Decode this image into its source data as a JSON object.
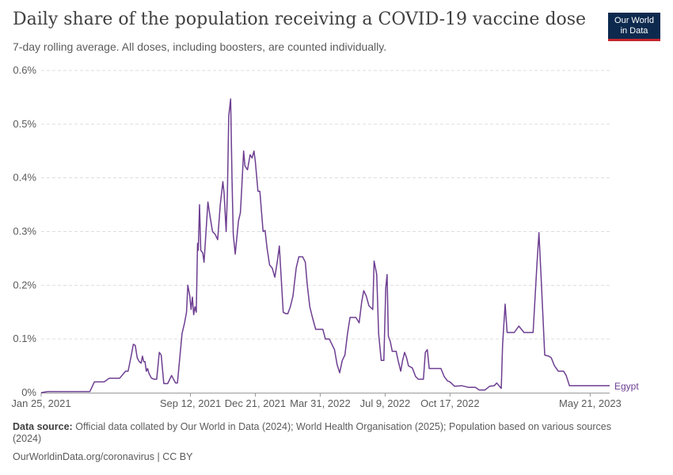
{
  "header": {
    "title": "Daily share of the population receiving a COVID-19 vaccine dose",
    "subtitle": "7-day rolling average. All doses, including boosters, are counted individually."
  },
  "logo": {
    "line1": "Our World",
    "line2": "in Data"
  },
  "footer": {
    "source_label": "Data source:",
    "source_text": "Official data collated by Our World in Data (2024); World Health Organisation (2025); Population based on various sources (2024)",
    "credit": "OurWorldinData.org/coronavirus | CC BY"
  },
  "colors": {
    "series": "#6d3e91",
    "grid": "#dddddd",
    "axis": "#999999"
  },
  "chart_data": {
    "type": "line",
    "ylabel": "",
    "xlabel": "",
    "ylim": [
      0,
      0.6
    ],
    "xlim": [
      "2021-01-25",
      "2023-06-20"
    ],
    "y_ticks": [
      "0%",
      "0.1%",
      "0.2%",
      "0.3%",
      "0.4%",
      "0.5%",
      "0.6%"
    ],
    "x_ticks": [
      {
        "date": "2021-01-25",
        "label": "Jan 25, 2021"
      },
      {
        "date": "2021-09-12",
        "label": "Sep 12, 2021"
      },
      {
        "date": "2021-12-21",
        "label": "Dec 21, 2021"
      },
      {
        "date": "2022-03-31",
        "label": "Mar 31, 2022"
      },
      {
        "date": "2022-07-09",
        "label": "Jul 9, 2022"
      },
      {
        "date": "2022-10-17",
        "label": "Oct 17, 2022"
      },
      {
        "date": "2023-05-21",
        "label": "May 21, 2023"
      }
    ],
    "grid": true,
    "series": [
      {
        "name": "Egypt",
        "points": [
          [
            "2021-01-25",
            0.0
          ],
          [
            "2021-02-04",
            0.002
          ],
          [
            "2021-04-10",
            0.002
          ],
          [
            "2021-04-17",
            0.02
          ],
          [
            "2021-05-02",
            0.02
          ],
          [
            "2021-05-10",
            0.027
          ],
          [
            "2021-05-26",
            0.027
          ],
          [
            "2021-06-04",
            0.04
          ],
          [
            "2021-06-08",
            0.04
          ],
          [
            "2021-06-13",
            0.07
          ],
          [
            "2021-06-16",
            0.09
          ],
          [
            "2021-06-19",
            0.088
          ],
          [
            "2021-06-22",
            0.065
          ],
          [
            "2021-06-25",
            0.058
          ],
          [
            "2021-06-28",
            0.055
          ],
          [
            "2021-06-30",
            0.068
          ],
          [
            "2021-07-02",
            0.058
          ],
          [
            "2021-07-04",
            0.058
          ],
          [
            "2021-07-06",
            0.04
          ],
          [
            "2021-07-08",
            0.045
          ],
          [
            "2021-07-10",
            0.036
          ],
          [
            "2021-07-14",
            0.027
          ],
          [
            "2021-07-18",
            0.025
          ],
          [
            "2021-07-22",
            0.025
          ],
          [
            "2021-07-26",
            0.075
          ],
          [
            "2021-07-29",
            0.07
          ],
          [
            "2021-08-02",
            0.017
          ],
          [
            "2021-08-08",
            0.017
          ],
          [
            "2021-08-14",
            0.032
          ],
          [
            "2021-08-20",
            0.018
          ],
          [
            "2021-08-23",
            0.018
          ],
          [
            "2021-08-30",
            0.11
          ],
          [
            "2021-09-03",
            0.13
          ],
          [
            "2021-09-06",
            0.15
          ],
          [
            "2021-09-08",
            0.2
          ],
          [
            "2021-09-11",
            0.18
          ],
          [
            "2021-09-13",
            0.155
          ],
          [
            "2021-09-15",
            0.178
          ],
          [
            "2021-09-17",
            0.145
          ],
          [
            "2021-09-19",
            0.16
          ],
          [
            "2021-09-21",
            0.15
          ],
          [
            "2021-09-23",
            0.278
          ],
          [
            "2021-09-24",
            0.265
          ],
          [
            "2021-09-26",
            0.35
          ],
          [
            "2021-09-28",
            0.265
          ],
          [
            "2021-10-01",
            0.26
          ],
          [
            "2021-10-03",
            0.243
          ],
          [
            "2021-10-06",
            0.3
          ],
          [
            "2021-10-09",
            0.355
          ],
          [
            "2021-10-12",
            0.33
          ],
          [
            "2021-10-16",
            0.3
          ],
          [
            "2021-10-20",
            0.295
          ],
          [
            "2021-10-24",
            0.285
          ],
          [
            "2021-10-28",
            0.35
          ],
          [
            "2021-11-01",
            0.393
          ],
          [
            "2021-11-03",
            0.37
          ],
          [
            "2021-11-06",
            0.3
          ],
          [
            "2021-11-08",
            0.37
          ],
          [
            "2021-11-10",
            0.515
          ],
          [
            "2021-11-13",
            0.547
          ],
          [
            "2021-11-15",
            0.4
          ],
          [
            "2021-11-17",
            0.295
          ],
          [
            "2021-11-20",
            0.258
          ],
          [
            "2021-11-25",
            0.32
          ],
          [
            "2021-11-28",
            0.335
          ],
          [
            "2021-11-30",
            0.38
          ],
          [
            "2021-12-03",
            0.45
          ],
          [
            "2021-12-05",
            0.422
          ],
          [
            "2021-12-09",
            0.415
          ],
          [
            "2021-12-13",
            0.443
          ],
          [
            "2021-12-16",
            0.437
          ],
          [
            "2021-12-19",
            0.45
          ],
          [
            "2021-12-21",
            0.43
          ],
          [
            "2021-12-25",
            0.375
          ],
          [
            "2021-12-28",
            0.375
          ],
          [
            "2022-01-02",
            0.3
          ],
          [
            "2022-01-05",
            0.302
          ],
          [
            "2022-01-08",
            0.27
          ],
          [
            "2022-01-12",
            0.238
          ],
          [
            "2022-01-16",
            0.232
          ],
          [
            "2022-01-20",
            0.215
          ],
          [
            "2022-01-24",
            0.245
          ],
          [
            "2022-01-27",
            0.273
          ],
          [
            "2022-01-30",
            0.21
          ],
          [
            "2022-02-02",
            0.15
          ],
          [
            "2022-02-06",
            0.147
          ],
          [
            "2022-02-09",
            0.147
          ],
          [
            "2022-02-13",
            0.16
          ],
          [
            "2022-02-17",
            0.18
          ],
          [
            "2022-02-22",
            0.232
          ],
          [
            "2022-02-26",
            0.253
          ],
          [
            "2022-03-04",
            0.253
          ],
          [
            "2022-03-08",
            0.243
          ],
          [
            "2022-03-11",
            0.2
          ],
          [
            "2022-03-15",
            0.16
          ],
          [
            "2022-03-19",
            0.14
          ],
          [
            "2022-03-24",
            0.118
          ],
          [
            "2022-03-30",
            0.118
          ],
          [
            "2022-04-04",
            0.118
          ],
          [
            "2022-04-08",
            0.1
          ],
          [
            "2022-04-14",
            0.1
          ],
          [
            "2022-04-18",
            0.09
          ],
          [
            "2022-04-22",
            0.08
          ],
          [
            "2022-04-26",
            0.052
          ],
          [
            "2022-04-30",
            0.037
          ],
          [
            "2022-05-04",
            0.06
          ],
          [
            "2022-05-08",
            0.07
          ],
          [
            "2022-05-12",
            0.11
          ],
          [
            "2022-05-16",
            0.14
          ],
          [
            "2022-05-20",
            0.14
          ],
          [
            "2022-05-25",
            0.14
          ],
          [
            "2022-05-30",
            0.13
          ],
          [
            "2022-06-03",
            0.17
          ],
          [
            "2022-06-06",
            0.19
          ],
          [
            "2022-06-10",
            0.18
          ],
          [
            "2022-06-14",
            0.162
          ],
          [
            "2022-06-20",
            0.155
          ],
          [
            "2022-06-22",
            0.245
          ],
          [
            "2022-06-26",
            0.22
          ],
          [
            "2022-06-29",
            0.11
          ],
          [
            "2022-07-03",
            0.06
          ],
          [
            "2022-07-07",
            0.06
          ],
          [
            "2022-07-10",
            0.195
          ],
          [
            "2022-07-12",
            0.22
          ],
          [
            "2022-07-14",
            0.105
          ],
          [
            "2022-07-17",
            0.095
          ],
          [
            "2022-07-20",
            0.077
          ],
          [
            "2022-07-26",
            0.077
          ],
          [
            "2022-07-29",
            0.06
          ],
          [
            "2022-08-02",
            0.04
          ],
          [
            "2022-08-05",
            0.06
          ],
          [
            "2022-08-08",
            0.075
          ],
          [
            "2022-08-11",
            0.065
          ],
          [
            "2022-08-14",
            0.05
          ],
          [
            "2022-08-20",
            0.046
          ],
          [
            "2022-08-25",
            0.03
          ],
          [
            "2022-08-29",
            0.025
          ],
          [
            "2022-09-06",
            0.025
          ],
          [
            "2022-09-09",
            0.075
          ],
          [
            "2022-09-12",
            0.08
          ],
          [
            "2022-09-15",
            0.045
          ],
          [
            "2022-09-22",
            0.045
          ],
          [
            "2022-10-03",
            0.045
          ],
          [
            "2022-10-08",
            0.03
          ],
          [
            "2022-10-13",
            0.022
          ],
          [
            "2022-10-17",
            0.02
          ],
          [
            "2022-10-24",
            0.012
          ],
          [
            "2022-11-04",
            0.013
          ],
          [
            "2022-11-14",
            0.01
          ],
          [
            "2022-11-25",
            0.01
          ],
          [
            "2022-12-01",
            0.005
          ],
          [
            "2022-12-10",
            0.005
          ],
          [
            "2022-12-17",
            0.012
          ],
          [
            "2022-12-24",
            0.013
          ],
          [
            "2022-12-28",
            0.018
          ],
          [
            "2023-01-04",
            0.008
          ],
          [
            "2023-01-06",
            0.09
          ],
          [
            "2023-01-10",
            0.165
          ],
          [
            "2023-01-13",
            0.112
          ],
          [
            "2023-01-17",
            0.112
          ],
          [
            "2023-01-24",
            0.112
          ],
          [
            "2023-01-31",
            0.124
          ],
          [
            "2023-02-08",
            0.112
          ],
          [
            "2023-02-15",
            0.112
          ],
          [
            "2023-02-22",
            0.112
          ],
          [
            "2023-02-28",
            0.24
          ],
          [
            "2023-03-03",
            0.298
          ],
          [
            "2023-03-07",
            0.2
          ],
          [
            "2023-03-12",
            0.07
          ],
          [
            "2023-03-18",
            0.068
          ],
          [
            "2023-03-22",
            0.065
          ],
          [
            "2023-03-27",
            0.05
          ],
          [
            "2023-04-02",
            0.04
          ],
          [
            "2023-04-10",
            0.04
          ],
          [
            "2023-04-14",
            0.032
          ],
          [
            "2023-04-19",
            0.013
          ],
          [
            "2023-05-01",
            0.013
          ],
          [
            "2023-06-20",
            0.013
          ]
        ]
      }
    ]
  }
}
